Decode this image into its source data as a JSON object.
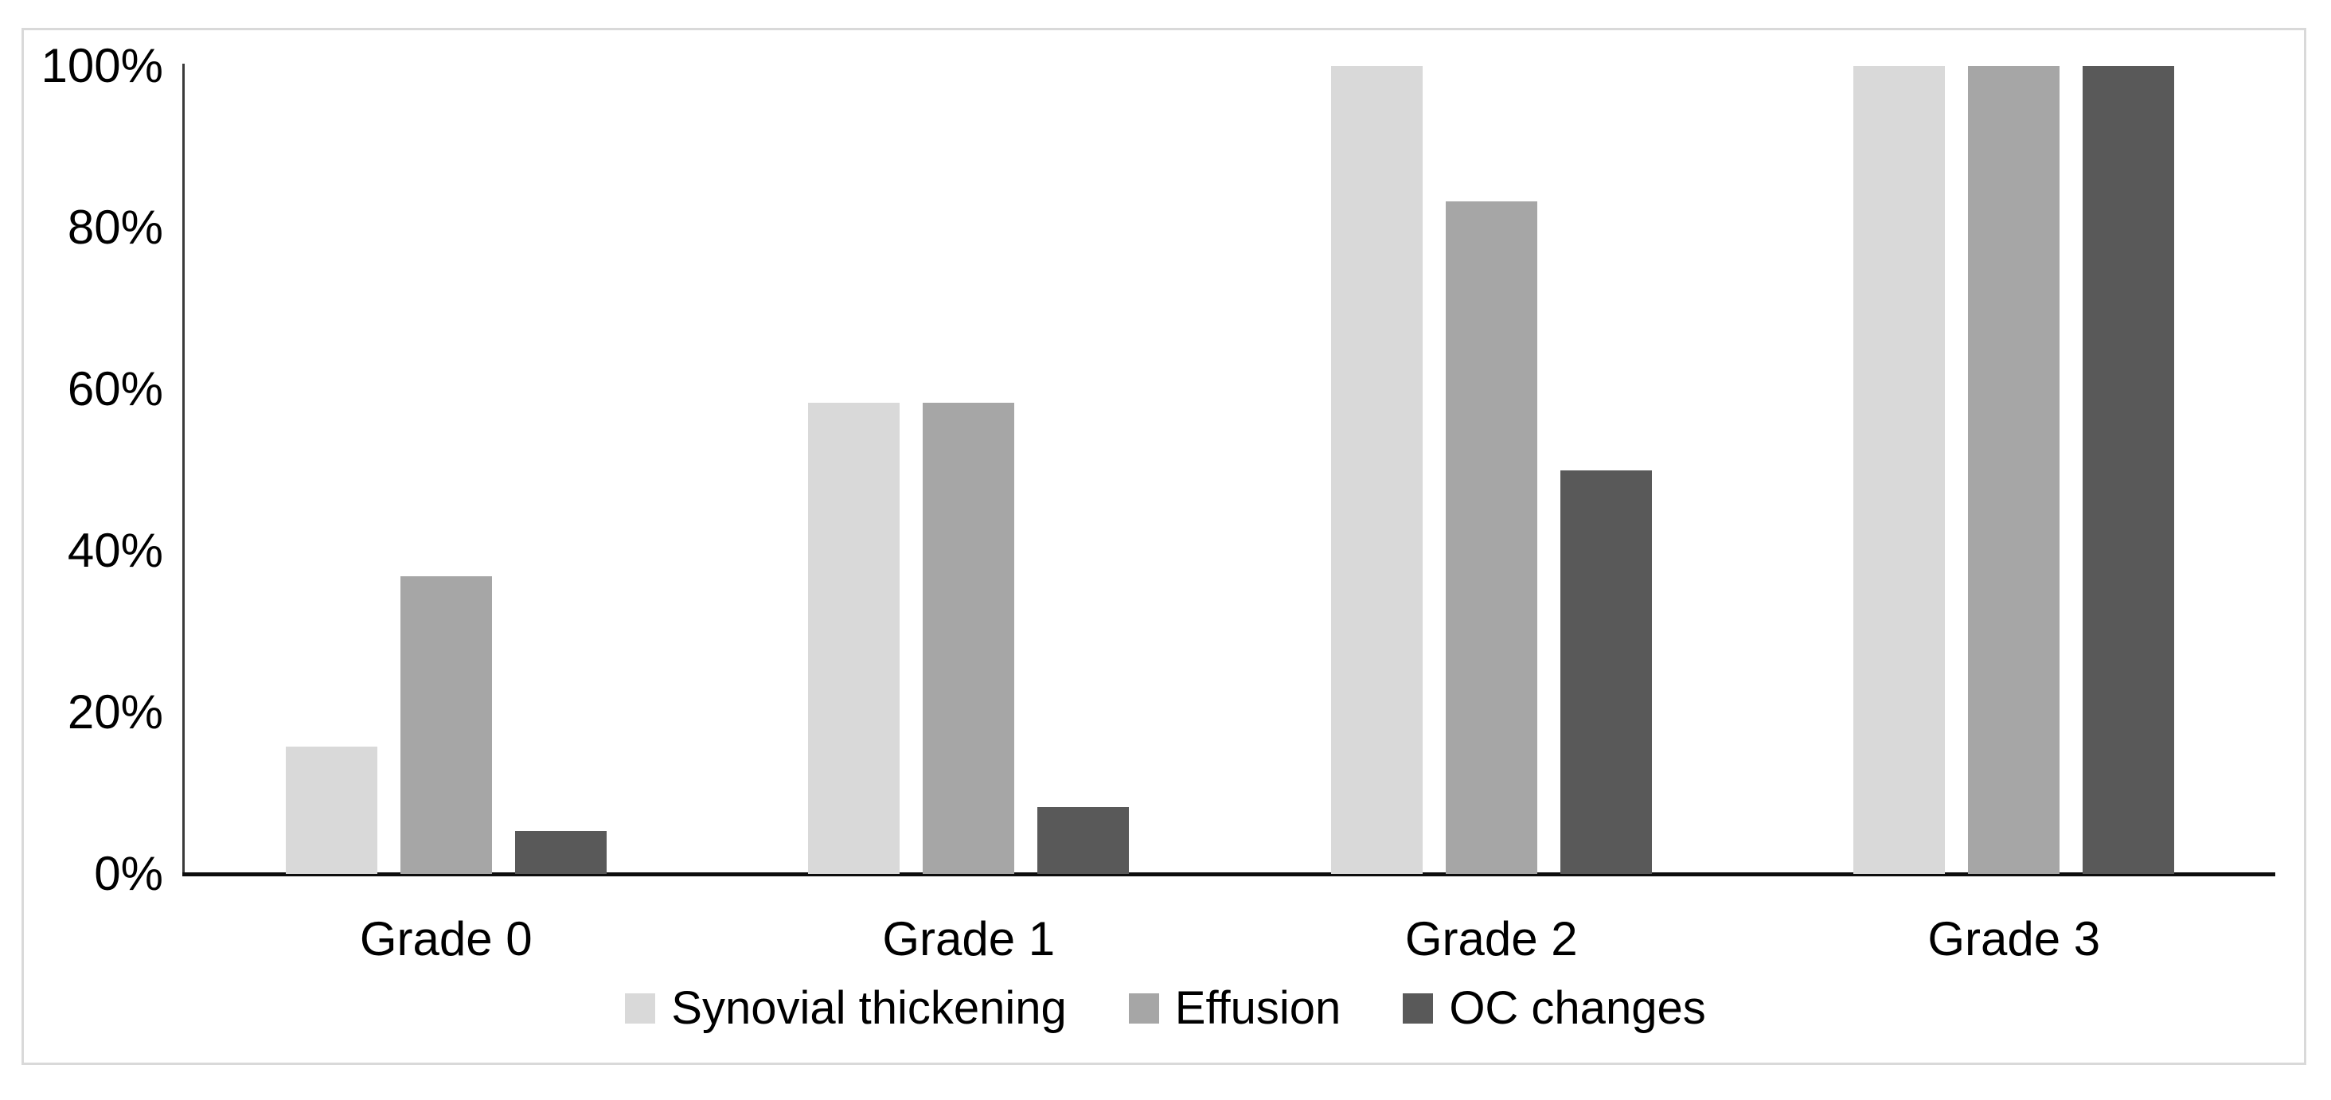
{
  "chart_data": {
    "type": "bar",
    "title": "",
    "xlabel": "",
    "ylabel": "",
    "categories": [
      "Grade 0",
      "Grade 1",
      "Grade 2",
      "Grade 3"
    ],
    "series": [
      {
        "name": "Synovial thickening",
        "color": "#d9d9d9",
        "values": [
          15.8,
          58.3,
          100,
          100
        ]
      },
      {
        "name": "Effusion",
        "color": "#a6a6a6",
        "values": [
          36.8,
          58.3,
          83.3,
          100
        ]
      },
      {
        "name": "OC changes",
        "color": "#595959",
        "values": [
          5.3,
          8.3,
          50,
          100
        ]
      }
    ],
    "ylim": [
      0,
      100
    ],
    "yticks": [
      {
        "value": 0,
        "label": "0%"
      },
      {
        "value": 20,
        "label": "20%"
      },
      {
        "value": 40,
        "label": "40%"
      },
      {
        "value": 60,
        "label": "60%"
      },
      {
        "value": 80,
        "label": "80%"
      },
      {
        "value": 100,
        "label": "100%"
      }
    ],
    "grid": false,
    "legend_position": "bottom",
    "axis_color": "#0d0d0d",
    "frame_color": "#d9d9d9"
  }
}
